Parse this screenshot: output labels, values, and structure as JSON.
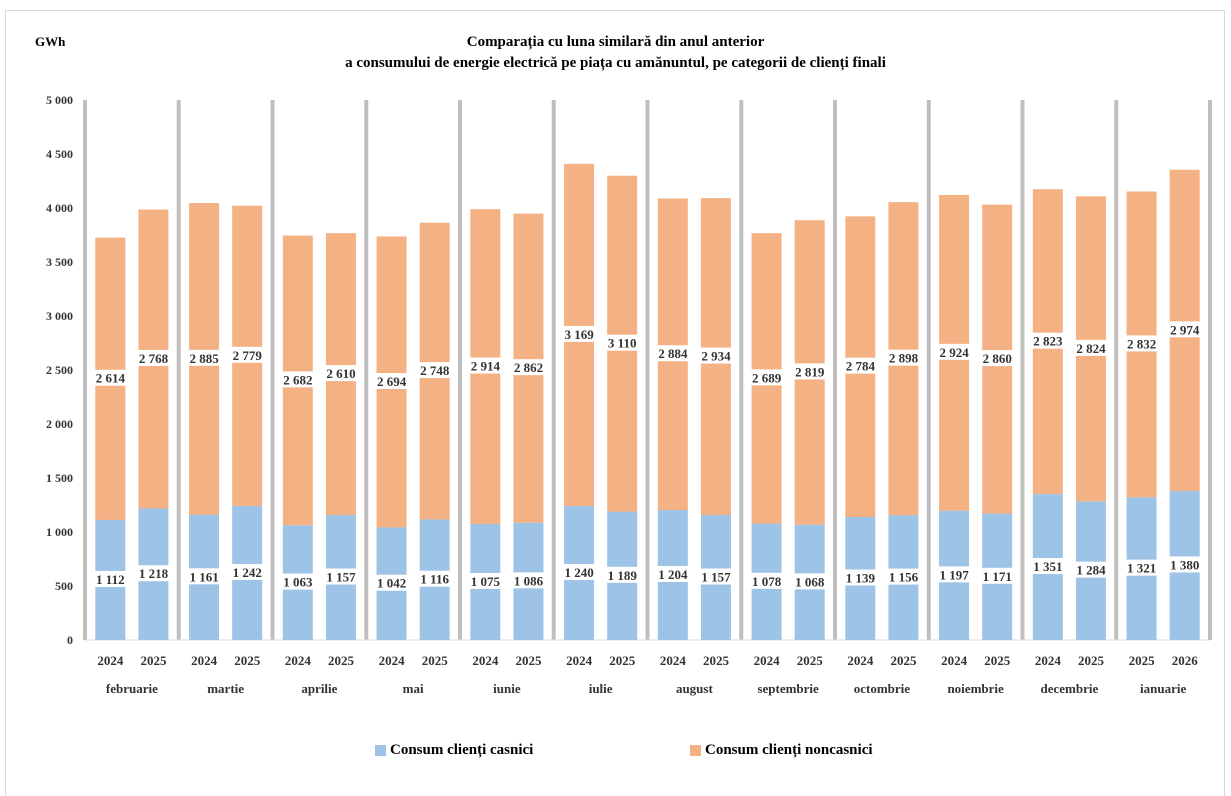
{
  "chart_data": {
    "type": "bar",
    "stacked": true,
    "title": "Comparația cu luna similară din anul anterior",
    "subtitle": "a consumului de energie electrică pe piața cu amănuntul, pe categorii de clienți finali",
    "ylabel": "GWh",
    "ylim": [
      0,
      5000
    ],
    "yticks": [
      "0",
      "500",
      "1 000",
      "1 500",
      "2 000",
      "2 500",
      "3 000",
      "3 500",
      "4 000",
      "4 500",
      "5 000"
    ],
    "grid": false,
    "legend_position": "bottom",
    "groups": [
      "februarie",
      "martie",
      "aprilie",
      "mai",
      "iunie",
      "iulie",
      "august",
      "septembrie",
      "octombrie",
      "noiembrie",
      "decembrie",
      "ianuarie"
    ],
    "categories": [
      "2024",
      "2025",
      "2024",
      "2025",
      "2024",
      "2025",
      "2024",
      "2025",
      "2024",
      "2025",
      "2024",
      "2025",
      "2024",
      "2025",
      "2024",
      "2025",
      "2024",
      "2025",
      "2024",
      "2025",
      "2024",
      "2025",
      "2025",
      "2026"
    ],
    "series": [
      {
        "name": "Consum clienți casnici",
        "color": "#9dc3e6",
        "values": [
          1112,
          1218,
          1161,
          1242,
          1063,
          1157,
          1042,
          1116,
          1075,
          1086,
          1240,
          1189,
          1204,
          1157,
          1078,
          1068,
          1139,
          1156,
          1197,
          1171,
          1351,
          1284,
          1321,
          1380
        ],
        "labels": [
          "1 112",
          "1 218",
          "1 161",
          "1 242",
          "1 063",
          "1 157",
          "1 042",
          "1 116",
          "1 075",
          "1 086",
          "1 240",
          "1 189",
          "1 204",
          "1 157",
          "1 078",
          "1 068",
          "1 139",
          "1 156",
          "1 197",
          "1 171",
          "1 351",
          "1 284",
          "1 321",
          "1 380"
        ]
      },
      {
        "name": "Consum clienți noncasnici",
        "color": "#f4b183",
        "values": [
          2614,
          2768,
          2885,
          2779,
          2682,
          2610,
          2694,
          2748,
          2914,
          2862,
          3169,
          3110,
          2884,
          2934,
          2689,
          2819,
          2784,
          2898,
          2924,
          2860,
          2823,
          2824,
          2832,
          2974
        ],
        "labels": [
          "2 614",
          "2 768",
          "2 885",
          "2 779",
          "2 682",
          "2 610",
          "2 694",
          "2 748",
          "2 914",
          "2 862",
          "3 169",
          "3 110",
          "2 884",
          "2 934",
          "2 689",
          "2 819",
          "2 784",
          "2 898",
          "2 924",
          "2 860",
          "2 823",
          "2 824",
          "2 832",
          "2 974"
        ]
      }
    ]
  }
}
